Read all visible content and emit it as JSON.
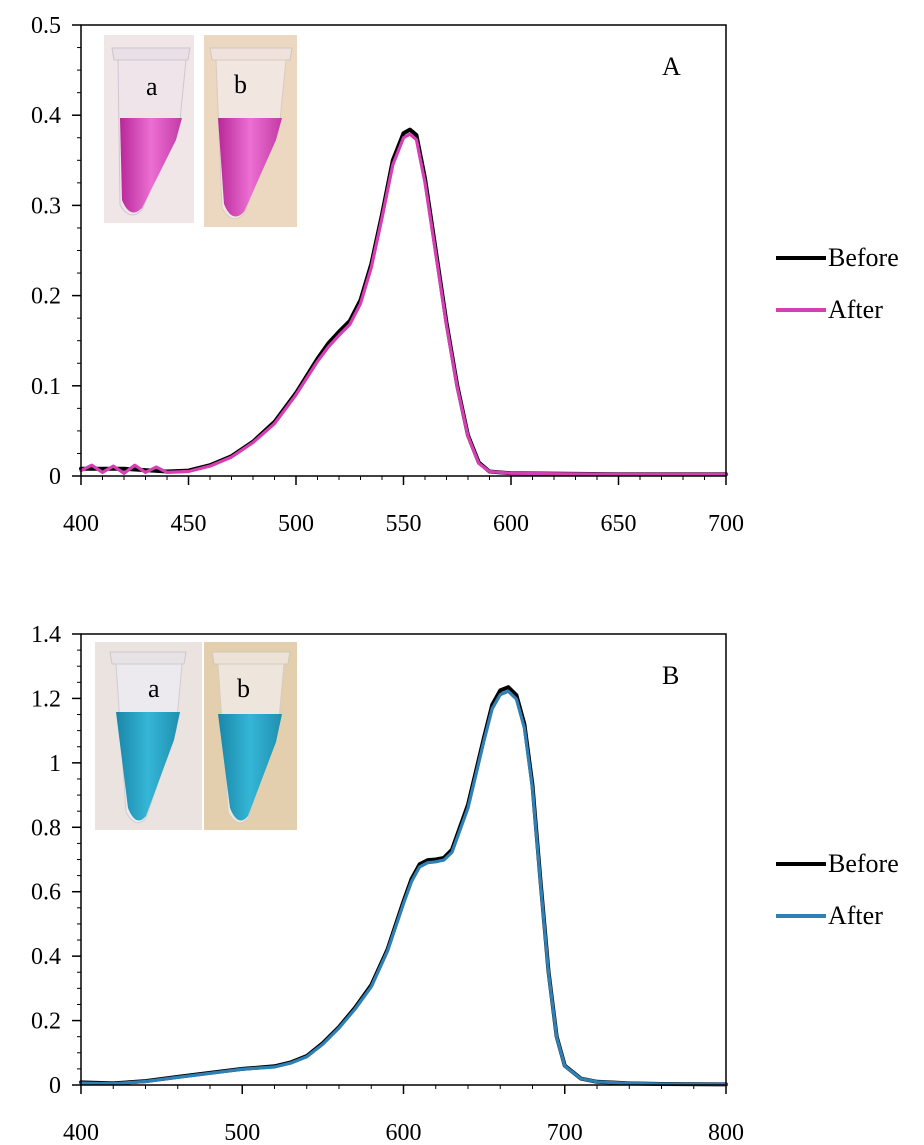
{
  "colors": {
    "before": "#000000",
    "after_A": "#d63fb4",
    "after_B": "#2f80b4",
    "tube_pink": "#e050c0",
    "tube_blue": "#23a6c6"
  },
  "chart_data": [
    {
      "type": "line",
      "panel_label": "A",
      "xlim": [
        400,
        700
      ],
      "ylim": [
        0,
        0.5
      ],
      "x_ticks": [
        400,
        450,
        500,
        550,
        600,
        650,
        700
      ],
      "x_tick_labels": [
        "400",
        "450",
        "500",
        "550",
        "600",
        "650",
        "700"
      ],
      "y_ticks": [
        0,
        0.1,
        0.2,
        0.3,
        0.4,
        0.5
      ],
      "y_tick_labels": [
        "0",
        "0.1",
        "0.2",
        "0.3",
        "0.4",
        "0.5"
      ],
      "grid": false,
      "legend_position": "right",
      "inset_labels": [
        "a",
        "b"
      ],
      "series": [
        {
          "name": "Before",
          "color": "#000000",
          "x": [
            400,
            420,
            440,
            450,
            460,
            470,
            480,
            490,
            500,
            510,
            515,
            520,
            525,
            530,
            535,
            540,
            545,
            550,
            553,
            556,
            560,
            565,
            570,
            575,
            580,
            585,
            590,
            600,
            650,
            700
          ],
          "y": [
            0.008,
            0.008,
            0.005,
            0.006,
            0.012,
            0.022,
            0.038,
            0.06,
            0.092,
            0.13,
            0.147,
            0.16,
            0.172,
            0.195,
            0.235,
            0.29,
            0.35,
            0.38,
            0.384,
            0.378,
            0.33,
            0.25,
            0.17,
            0.1,
            0.045,
            0.015,
            0.005,
            0.003,
            0.002,
            0.002
          ]
        },
        {
          "name": "After",
          "color": "#d63fb4",
          "x": [
            400,
            405,
            410,
            415,
            420,
            425,
            430,
            435,
            440,
            450,
            460,
            470,
            480,
            490,
            500,
            510,
            515,
            520,
            525,
            530,
            535,
            540,
            545,
            550,
            553,
            556,
            560,
            565,
            570,
            575,
            580,
            585,
            590,
            600,
            650,
            700
          ],
          "y": [
            0.006,
            0.012,
            0.004,
            0.011,
            0.003,
            0.012,
            0.004,
            0.01,
            0.004,
            0.005,
            0.011,
            0.021,
            0.037,
            0.058,
            0.09,
            0.127,
            0.143,
            0.156,
            0.168,
            0.191,
            0.231,
            0.286,
            0.345,
            0.375,
            0.379,
            0.373,
            0.325,
            0.246,
            0.167,
            0.098,
            0.044,
            0.014,
            0.005,
            0.003,
            0.002,
            0.002
          ]
        }
      ]
    },
    {
      "type": "line",
      "panel_label": "B",
      "xlim": [
        400,
        800
      ],
      "ylim": [
        0,
        1.4
      ],
      "x_ticks": [
        400,
        500,
        600,
        700,
        800
      ],
      "x_tick_labels": [
        "400",
        "500",
        "600",
        "700",
        "800"
      ],
      "y_ticks": [
        0,
        0.2,
        0.4,
        0.6,
        0.8,
        1.0,
        1.2,
        1.4
      ],
      "y_tick_labels": [
        "0",
        "0.2",
        "0.4",
        "0.6",
        "0.8",
        "1",
        "1.2",
        "1.4"
      ],
      "grid": false,
      "legend_position": "right",
      "inset_labels": [
        "a",
        "b"
      ],
      "series": [
        {
          "name": "Before",
          "color": "#000000",
          "x": [
            400,
            420,
            440,
            460,
            480,
            500,
            520,
            530,
            540,
            550,
            560,
            570,
            580,
            590,
            600,
            605,
            610,
            615,
            620,
            625,
            630,
            640,
            650,
            655,
            660,
            665,
            670,
            675,
            680,
            685,
            690,
            695,
            700,
            710,
            720,
            740,
            760,
            800
          ],
          "y": [
            0.008,
            0.005,
            0.012,
            0.025,
            0.038,
            0.05,
            0.058,
            0.07,
            0.09,
            0.13,
            0.18,
            0.24,
            0.31,
            0.42,
            0.57,
            0.64,
            0.685,
            0.698,
            0.7,
            0.705,
            0.73,
            0.87,
            1.08,
            1.18,
            1.225,
            1.235,
            1.21,
            1.12,
            0.93,
            0.63,
            0.35,
            0.15,
            0.06,
            0.02,
            0.01,
            0.005,
            0.003,
            0.002
          ]
        },
        {
          "name": "After",
          "color": "#2f80b4",
          "x": [
            400,
            420,
            440,
            460,
            480,
            500,
            520,
            530,
            540,
            550,
            560,
            570,
            580,
            590,
            600,
            605,
            610,
            615,
            620,
            625,
            630,
            640,
            650,
            655,
            660,
            665,
            670,
            675,
            680,
            685,
            690,
            695,
            700,
            710,
            720,
            740,
            760,
            800
          ],
          "y": [
            0.006,
            0.004,
            0.011,
            0.024,
            0.036,
            0.049,
            0.056,
            0.068,
            0.088,
            0.127,
            0.177,
            0.236,
            0.305,
            0.415,
            0.563,
            0.632,
            0.677,
            0.69,
            0.693,
            0.698,
            0.722,
            0.86,
            1.07,
            1.168,
            1.212,
            1.222,
            1.198,
            1.108,
            0.92,
            0.623,
            0.346,
            0.148,
            0.059,
            0.02,
            0.01,
            0.005,
            0.003,
            0.002
          ]
        }
      ]
    }
  ]
}
